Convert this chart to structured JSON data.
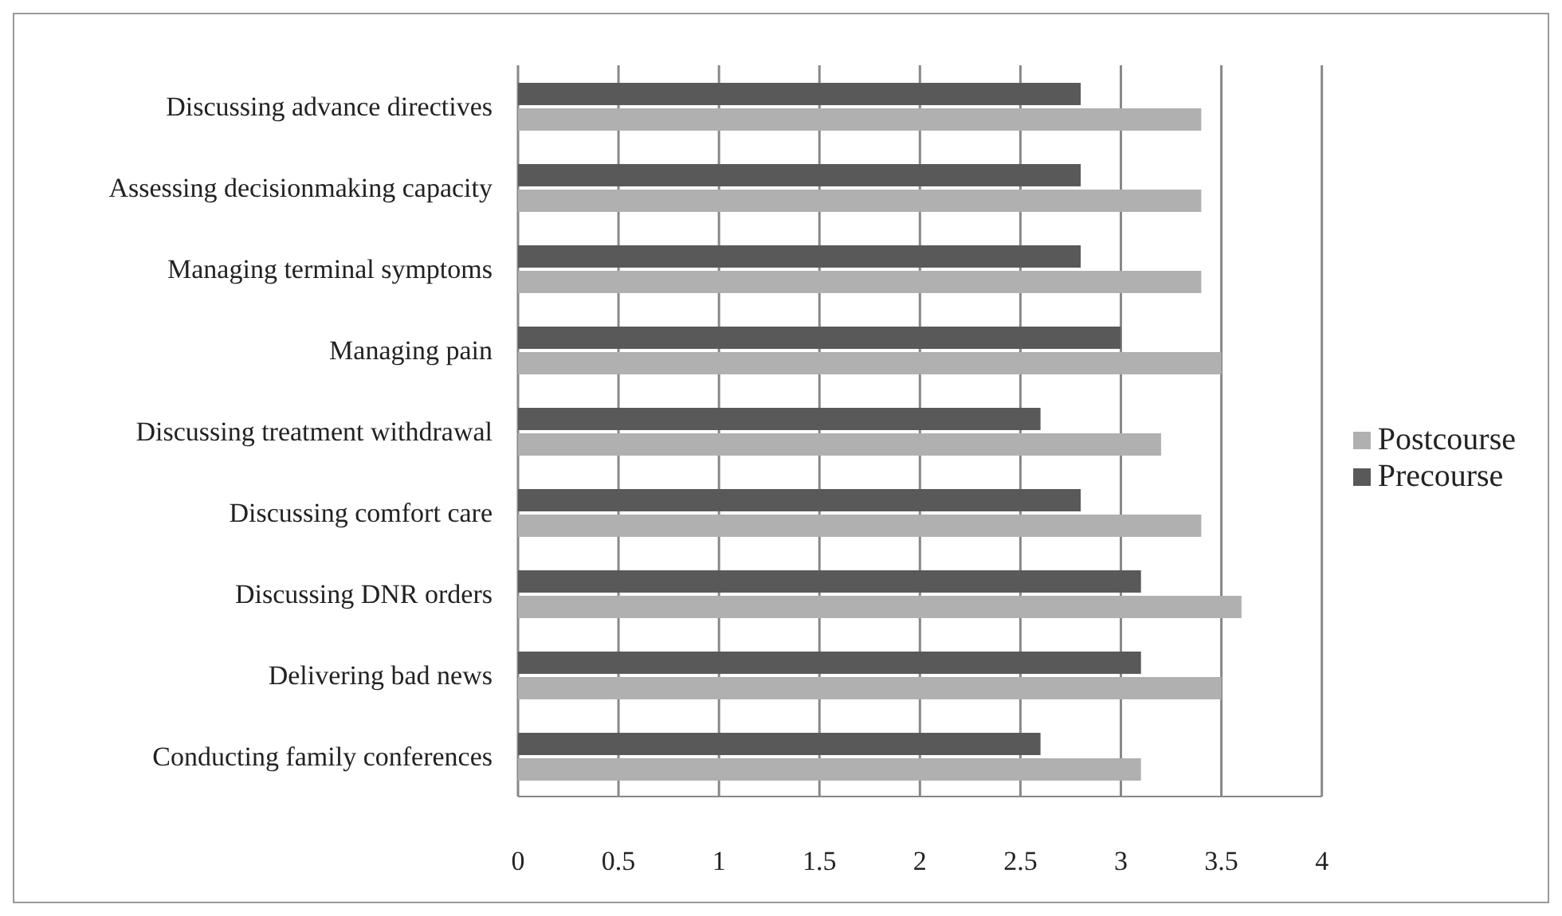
{
  "chart_data": {
    "type": "bar",
    "orientation": "horizontal",
    "categories": [
      "Discussing advance directives",
      "Assessing decisionmaking capacity",
      "Managing terminal symptoms",
      "Managing pain",
      "Discussing treatment withdrawal",
      "Discussing comfort care",
      "Discussing DNR orders",
      "Delivering bad news",
      "Conducting family conferences"
    ],
    "series": [
      {
        "name": "Precourse",
        "color": "#595959",
        "values": [
          2.8,
          2.8,
          2.8,
          3.0,
          2.6,
          2.8,
          3.1,
          3.1,
          2.6
        ]
      },
      {
        "name": "Postcourse",
        "color": "#b0b0b0",
        "values": [
          3.4,
          3.4,
          3.4,
          3.5,
          3.2,
          3.4,
          3.6,
          3.5,
          3.1
        ]
      }
    ],
    "xlim": [
      0,
      4
    ],
    "xticks": [
      0,
      0.5,
      1,
      1.5,
      2,
      2.5,
      3,
      3.5,
      4
    ],
    "grid": "x",
    "legend": "right"
  }
}
